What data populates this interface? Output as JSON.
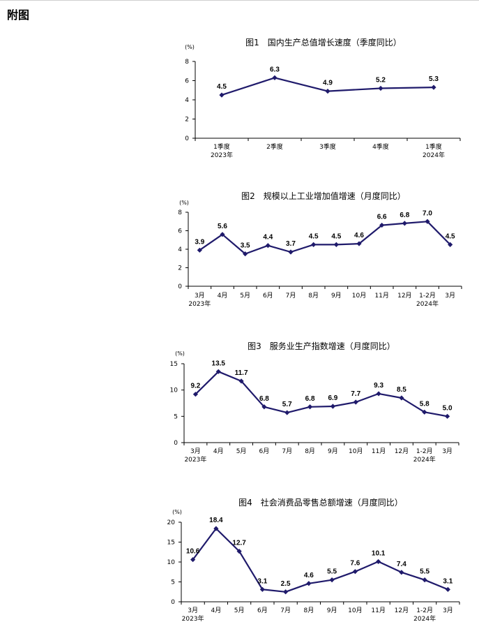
{
  "page": {
    "heading": "附图"
  },
  "colors": {
    "line": "#1f1a6b",
    "axis": "#000000"
  },
  "chart_data": [
    {
      "type": "line",
      "title": "图1　国内生产总值增长速度（季度同比）",
      "unit": "(%)",
      "categories": [
        "1季度",
        "2季度",
        "3季度",
        "4季度",
        "1季度"
      ],
      "sublabels": [
        "2023年",
        "",
        "",
        "",
        "2024年"
      ],
      "values": [
        4.5,
        6.3,
        4.9,
        5.2,
        5.3
      ],
      "value_labels": [
        "4.5",
        "6.3",
        "4.9",
        "5.2",
        "5.3"
      ],
      "ylim": [
        0,
        8
      ],
      "yticks": [
        "0",
        "2",
        "4",
        "6",
        "8"
      ],
      "xlabel": "",
      "ylabel": ""
    },
    {
      "type": "line",
      "title": "图2　规模以上工业增加值增速（月度同比）",
      "unit": "(%)",
      "categories": [
        "3月",
        "4月",
        "5月",
        "6月",
        "7月",
        "8月",
        "9月",
        "10月",
        "11月",
        "12月",
        "1-2月",
        "3月"
      ],
      "sublabels": [
        "2023年",
        "",
        "",
        "",
        "",
        "",
        "",
        "",
        "",
        "",
        "2024年",
        ""
      ],
      "values": [
        3.9,
        5.6,
        3.5,
        4.4,
        3.7,
        4.5,
        4.5,
        4.6,
        6.6,
        6.8,
        7.0,
        4.5
      ],
      "value_labels": [
        "3.9",
        "5.6",
        "3.5",
        "4.4",
        "3.7",
        "4.5",
        "4.5",
        "4.6",
        "6.6",
        "6.8",
        "7.0",
        "4.5"
      ],
      "ylim": [
        0,
        8
      ],
      "yticks": [
        "0",
        "2",
        "4",
        "6",
        "8"
      ],
      "xlabel": "",
      "ylabel": ""
    },
    {
      "type": "line",
      "title": "图3　服务业生产指数增速（月度同比）",
      "unit": "(%)",
      "categories": [
        "3月",
        "4月",
        "5月",
        "6月",
        "7月",
        "8月",
        "9月",
        "10月",
        "11月",
        "12月",
        "1-2月",
        "3月"
      ],
      "sublabels": [
        "2023年",
        "",
        "",
        "",
        "",
        "",
        "",
        "",
        "",
        "",
        "2024年",
        ""
      ],
      "values": [
        9.2,
        13.5,
        11.7,
        6.8,
        5.7,
        6.8,
        6.9,
        7.7,
        9.3,
        8.5,
        5.8,
        5.0
      ],
      "value_labels": [
        "9.2",
        "13.5",
        "11.7",
        "6.8",
        "5.7",
        "6.8",
        "6.9",
        "7.7",
        "9.3",
        "8.5",
        "5.8",
        "5.0"
      ],
      "ylim": [
        0,
        15
      ],
      "yticks": [
        "0",
        "5",
        "10",
        "15"
      ],
      "xlabel": "",
      "ylabel": ""
    },
    {
      "type": "line",
      "title": "图4　社会消费品零售总额增速（月度同比）",
      "unit": "(%)",
      "categories": [
        "3月",
        "4月",
        "5月",
        "6月",
        "7月",
        "8月",
        "9月",
        "10月",
        "11月",
        "12月",
        "1-2月",
        "3月"
      ],
      "sublabels": [
        "2023年",
        "",
        "",
        "",
        "",
        "",
        "",
        "",
        "",
        "",
        "2024年",
        ""
      ],
      "values": [
        10.6,
        18.4,
        12.7,
        3.1,
        2.5,
        4.6,
        5.5,
        7.6,
        10.1,
        7.4,
        5.5,
        3.1
      ],
      "value_labels": [
        "10.6",
        "18.4",
        "12.7",
        "3.1",
        "2.5",
        "4.6",
        "5.5",
        "7.6",
        "10.1",
        "7.4",
        "5.5",
        "3.1"
      ],
      "ylim": [
        0,
        20
      ],
      "yticks": [
        "0",
        "5",
        "10",
        "15",
        "20"
      ],
      "xlabel": "",
      "ylabel": ""
    }
  ]
}
